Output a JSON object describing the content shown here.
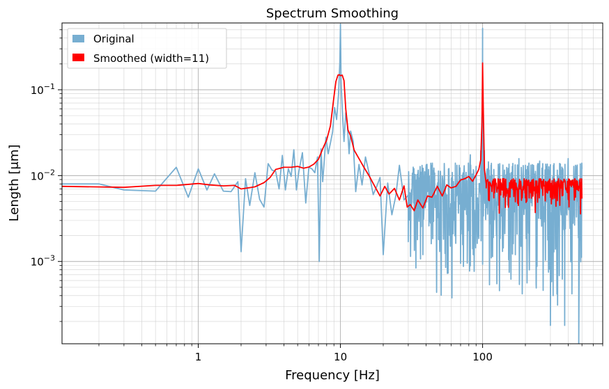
{
  "chart_data": {
    "type": "line",
    "title": "Spectrum Smoothing",
    "xlabel": "Frequency [Hz]",
    "ylabel": "Length [μm]",
    "xscale": "log",
    "yscale": "log",
    "xlim": [
      0.11,
      700
    ],
    "ylim": [
      0.00011,
      0.6
    ],
    "xticks": [
      {
        "value": 1,
        "label": "1"
      },
      {
        "value": 10,
        "label": "10"
      },
      {
        "value": 100,
        "label": "100"
      }
    ],
    "yticks": [
      {
        "value": 0.1,
        "base": "10",
        "exp": "−1"
      },
      {
        "value": 0.01,
        "base": "10",
        "exp": "−2"
      },
      {
        "value": 0.001,
        "base": "10",
        "exp": "−3"
      }
    ],
    "grid": true,
    "legend_position": "top-left",
    "series": [
      {
        "name": "Original",
        "color": "#77aed1",
        "x": [
          0.11,
          0.2,
          0.3,
          0.5,
          0.7,
          0.85,
          1.0,
          1.15,
          1.3,
          1.5,
          1.7,
          1.9,
          2.0,
          2.15,
          2.3,
          2.5,
          2.7,
          2.9,
          3.1,
          3.3,
          3.5,
          3.7,
          3.9,
          4.1,
          4.3,
          4.5,
          4.7,
          4.9,
          5.1,
          5.4,
          5.7,
          6.0,
          6.3,
          6.6,
          6.9,
          7.1,
          7.3,
          7.5,
          7.7,
          7.9,
          8.2,
          8.5,
          8.8,
          9.1,
          9.4,
          9.7,
          9.9,
          10.0,
          10.1,
          10.3,
          10.6,
          10.9,
          11.2,
          11.5,
          11.8,
          12.3,
          12.8,
          13.5,
          14.2,
          15.0,
          16.0,
          17.0,
          18.0,
          19.0,
          20.0,
          21.5,
          23.0,
          24.5,
          26.0,
          28.0,
          30.0,
          32.0,
          34.0,
          36.0,
          38.0,
          40.0,
          43.0,
          46.0,
          49.0,
          52.0,
          55.0,
          58.0,
          62.0,
          66.0,
          70.0,
          74.0,
          78.0,
          82.0,
          86.0,
          90.0,
          94.0,
          97.0,
          99.0,
          100.0,
          101.0,
          103.0,
          106.0,
          110.0,
          115.0,
          120.0,
          126.0,
          132.0,
          139.0,
          146.0,
          154.0,
          162.0,
          170.0,
          180.0,
          190.0,
          200.0,
          212.0,
          225.0,
          238.0,
          252.0,
          267.0,
          283.0,
          300.0,
          318.0,
          337.0,
          357.0,
          378.0,
          400.0,
          425.0,
          450.0,
          475.0,
          500.0
        ],
        "y": [
          0.008,
          0.008,
          0.0068,
          0.0066,
          0.0125,
          0.0056,
          0.012,
          0.0068,
          0.0105,
          0.0066,
          0.0065,
          0.0085,
          0.0013,
          0.0092,
          0.0045,
          0.0108,
          0.0053,
          0.0043,
          0.0138,
          0.0116,
          0.0112,
          0.007,
          0.0172,
          0.0068,
          0.012,
          0.0098,
          0.02,
          0.0068,
          0.0112,
          0.0185,
          0.0048,
          0.0125,
          0.012,
          0.0108,
          0.0165,
          0.001,
          0.0205,
          0.0085,
          0.015,
          0.028,
          0.018,
          0.024,
          0.0322,
          0.062,
          0.045,
          0.09,
          0.21,
          0.58,
          0.12,
          0.06,
          0.025,
          0.054,
          0.038,
          0.018,
          0.033,
          0.025,
          0.0065,
          0.0135,
          0.0078,
          0.0165,
          0.0102,
          0.006,
          0.0075,
          0.0095,
          0.0012,
          0.0082,
          0.0035,
          0.0058,
          0.0132,
          0.0052,
          0.0017,
          0.0095,
          0.0022,
          0.0068,
          0.0012,
          0.0125,
          0.0028,
          0.0107,
          0.0018,
          0.0098,
          0.00085,
          0.0121,
          0.0021,
          0.0132,
          0.00095,
          0.0115,
          0.0024,
          0.0175,
          0.0012,
          0.0128,
          0.0035,
          0.0195,
          0.048,
          0.52,
          0.055,
          0.0195,
          0.0042,
          0.0145,
          0.0011,
          0.0118,
          0.00055,
          0.0138,
          0.0017,
          0.0102,
          0.00075,
          0.0128,
          0.0012,
          0.0158,
          0.00042,
          0.0132,
          0.0016,
          0.0118,
          0.00055,
          0.0148,
          0.00095,
          0.0128,
          0.00018,
          0.0138,
          0.00031,
          0.0115,
          0.00018,
          0.0158,
          0.00042,
          0.0132,
          0.00011,
          0.012
        ],
        "band": {
          "from": 30.0,
          "lower": 0.0003,
          "upper": 0.014
        }
      },
      {
        "name": "Smoothed (width=11)",
        "color": "#ff0000",
        "x": [
          0.11,
          0.3,
          0.5,
          0.7,
          1.0,
          1.2,
          1.5,
          1.8,
          2.0,
          2.5,
          2.9,
          3.2,
          3.5,
          4.0,
          4.5,
          5.0,
          5.5,
          6.0,
          6.5,
          7.0,
          7.5,
          8.0,
          8.5,
          9.0,
          9.3,
          9.6,
          9.8,
          10.0,
          10.3,
          10.6,
          10.9,
          11.3,
          11.8,
          12.5,
          13.5,
          14.5,
          16.0,
          17.5,
          19.0,
          20.5,
          22.0,
          24.0,
          26.0,
          28.0,
          29.5,
          31.0,
          33.0,
          35.0,
          38.0,
          41.0,
          44.0,
          48.0,
          52.0,
          56.0,
          60.0,
          65.0,
          70.0,
          75.0,
          80.0,
          85.0,
          90.0,
          94.0,
          97.0,
          99.0,
          100.0,
          101.0,
          103.0,
          106.0,
          110.0,
          120.0,
          140.0,
          170.0,
          200.0,
          250.0,
          300.0,
          350.0,
          400.0,
          450.0,
          500.0
        ],
        "y": [
          0.0075,
          0.0073,
          0.0077,
          0.0077,
          0.0081,
          0.0078,
          0.0076,
          0.0077,
          0.007,
          0.0074,
          0.0083,
          0.0095,
          0.0118,
          0.0125,
          0.0125,
          0.0128,
          0.0122,
          0.0126,
          0.0136,
          0.0155,
          0.0205,
          0.026,
          0.038,
          0.082,
          0.125,
          0.148,
          0.15,
          0.146,
          0.148,
          0.128,
          0.06,
          0.034,
          0.029,
          0.0198,
          0.0158,
          0.0128,
          0.0098,
          0.0074,
          0.0058,
          0.0075,
          0.0061,
          0.0071,
          0.0052,
          0.0076,
          0.0043,
          0.0046,
          0.0039,
          0.0052,
          0.0042,
          0.0058,
          0.0056,
          0.0075,
          0.0058,
          0.0078,
          0.0072,
          0.0075,
          0.0089,
          0.0092,
          0.0098,
          0.0086,
          0.0102,
          0.0118,
          0.0152,
          0.042,
          0.205,
          0.068,
          0.012,
          0.0072,
          0.0058,
          0.0055,
          0.0056,
          0.0054,
          0.0055,
          0.0055,
          0.0056,
          0.0054,
          0.0055,
          0.0056,
          0.0054
        ],
        "band": {
          "from": 106.0,
          "lower": 0.0035,
          "upper": 0.0092
        }
      }
    ]
  }
}
